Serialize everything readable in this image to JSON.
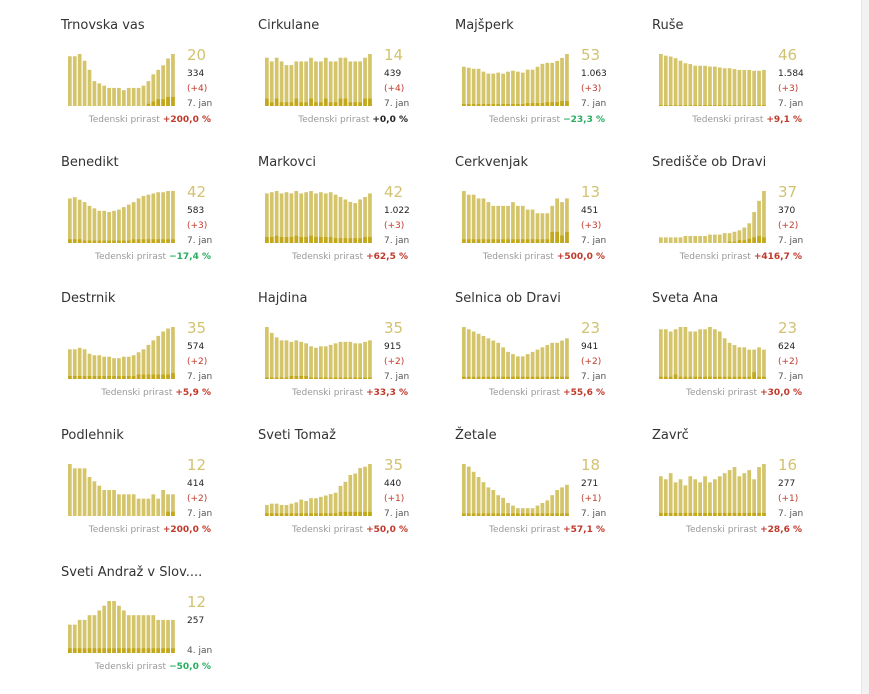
{
  "growth_label": "Tedenski prirast",
  "colors": {
    "bar": "#d4c46a",
    "bar_recent": "#c2a81a",
    "positive": "#c0392b",
    "negative": "#27ae60",
    "accent": "#d2c272"
  },
  "chart_data": [
    {
      "type": "bar",
      "title": "Trnovska vas",
      "value": "20",
      "cumulative": "334",
      "delta": "(+4)",
      "date": "7. jan",
      "growth": "+200,0 %",
      "growth_sign": "pos",
      "values": [
        22,
        22,
        23,
        20,
        16,
        11,
        10,
        9,
        8,
        8,
        8,
        7,
        8,
        8,
        8,
        9,
        11,
        14,
        16,
        18,
        21,
        23
      ],
      "recent": [
        0,
        0,
        0,
        0,
        0,
        0,
        0,
        0,
        0,
        0,
        0,
        0,
        0,
        0,
        0,
        0,
        1,
        2,
        3,
        3,
        4,
        4
      ]
    },
    {
      "type": "bar",
      "title": "Cirkulane",
      "value": "14",
      "cumulative": "439",
      "delta": "(+4)",
      "date": "7. jan",
      "growth": "+0,0 %",
      "growth_sign": "zero",
      "values": [
        13,
        12,
        13,
        12,
        11,
        11,
        12,
        12,
        12,
        13,
        12,
        12,
        13,
        12,
        12,
        13,
        13,
        12,
        12,
        12,
        13,
        14
      ],
      "recent": [
        2,
        1,
        2,
        1,
        1,
        1,
        2,
        1,
        1,
        2,
        1,
        1,
        2,
        1,
        1,
        2,
        2,
        1,
        1,
        1,
        2,
        2
      ]
    },
    {
      "type": "bar",
      "title": "Majšperk",
      "value": "53",
      "cumulative": "1.063",
      "delta": "(+3)",
      "date": "7. jan",
      "growth": "−23,3 %",
      "growth_sign": "neg",
      "values": [
        40,
        39,
        38,
        38,
        35,
        33,
        33,
        34,
        33,
        35,
        36,
        35,
        34,
        37,
        37,
        40,
        43,
        44,
        44,
        46,
        49,
        53
      ],
      "recent": [
        2,
        2,
        2,
        2,
        2,
        2,
        2,
        2,
        2,
        2,
        2,
        2,
        2,
        3,
        3,
        3,
        3,
        4,
        4,
        4,
        5,
        5
      ]
    },
    {
      "type": "bar",
      "title": "Ruše",
      "value": "46",
      "cumulative": "1.584",
      "delta": "(+3)",
      "date": "7. jan",
      "growth": "+9,1 %",
      "growth_sign": "pos",
      "values": [
        62,
        60,
        59,
        57,
        54,
        51,
        50,
        48,
        48,
        48,
        47,
        47,
        46,
        45,
        45,
        44,
        43,
        43,
        43,
        42,
        42,
        43
      ],
      "recent": [
        1,
        1,
        1,
        1,
        1,
        1,
        1,
        1,
        1,
        1,
        1,
        1,
        1,
        1,
        1,
        1,
        1,
        1,
        1,
        1,
        1,
        1
      ]
    },
    {
      "type": "bar",
      "title": "Benedikt",
      "value": "42",
      "cumulative": "583",
      "delta": "(+3)",
      "date": "7. jan",
      "growth": "−17,4 %",
      "growth_sign": "neg",
      "values": [
        36,
        37,
        35,
        33,
        30,
        28,
        26,
        26,
        25,
        26,
        27,
        29,
        31,
        33,
        36,
        38,
        39,
        40,
        41,
        41,
        42,
        42
      ],
      "recent": [
        3,
        3,
        3,
        2,
        2,
        2,
        2,
        2,
        2,
        2,
        2,
        2,
        2,
        3,
        3,
        3,
        3,
        3,
        3,
        3,
        3,
        3
      ]
    },
    {
      "type": "bar",
      "title": "Markovci",
      "value": "42",
      "cumulative": "1.022",
      "delta": "(+3)",
      "date": "7. jan",
      "growth": "+62,5 %",
      "growth_sign": "pos",
      "values": [
        41,
        42,
        43,
        41,
        42,
        41,
        43,
        41,
        42,
        43,
        41,
        42,
        41,
        42,
        40,
        38,
        36,
        34,
        33,
        36,
        38,
        41
      ],
      "recent": [
        5,
        5,
        6,
        5,
        5,
        5,
        6,
        5,
        5,
        6,
        5,
        5,
        5,
        5,
        4,
        4,
        4,
        4,
        4,
        4,
        5,
        5
      ]
    },
    {
      "type": "bar",
      "title": "Cerkvenjak",
      "value": "13",
      "cumulative": "451",
      "delta": "(+3)",
      "date": "7. jan",
      "growth": "+500,0 %",
      "growth_sign": "pos",
      "values": [
        14,
        13,
        13,
        12,
        12,
        11,
        10,
        10,
        10,
        10,
        11,
        10,
        10,
        9,
        9,
        8,
        8,
        8,
        10,
        12,
        11,
        12
      ],
      "recent": [
        1,
        1,
        1,
        1,
        1,
        1,
        1,
        1,
        1,
        1,
        1,
        1,
        1,
        1,
        1,
        1,
        1,
        1,
        3,
        3,
        2,
        3
      ]
    },
    {
      "type": "bar",
      "title": "Središče ob Dravi",
      "value": "37",
      "cumulative": "370",
      "delta": "(+2)",
      "date": "7. jan",
      "growth": "+416,7 %",
      "growth_sign": "pos",
      "values": [
        4,
        4,
        4,
        4,
        4,
        5,
        5,
        5,
        5,
        5,
        6,
        6,
        6,
        7,
        7,
        8,
        9,
        11,
        14,
        22,
        30,
        37
      ],
      "recent": [
        0,
        0,
        0,
        0,
        0,
        0,
        0,
        0,
        0,
        0,
        0,
        0,
        0,
        0,
        1,
        1,
        2,
        2,
        3,
        4,
        5,
        4
      ]
    },
    {
      "type": "bar",
      "title": "Destrnik",
      "value": "35",
      "cumulative": "574",
      "delta": "(+2)",
      "date": "7. jan",
      "growth": "+5,9 %",
      "growth_sign": "pos",
      "values": [
        20,
        20,
        21,
        20,
        17,
        16,
        16,
        15,
        15,
        14,
        14,
        15,
        15,
        16,
        18,
        20,
        23,
        26,
        29,
        32,
        34,
        35
      ],
      "recent": [
        2,
        2,
        2,
        2,
        2,
        2,
        2,
        2,
        2,
        2,
        2,
        2,
        2,
        2,
        3,
        3,
        3,
        3,
        3,
        3,
        3,
        4
      ]
    },
    {
      "type": "bar",
      "title": "Hajdina",
      "value": "35",
      "cumulative": "915",
      "delta": "(+2)",
      "date": "7. jan",
      "growth": "+33,3 %",
      "growth_sign": "pos",
      "values": [
        35,
        31,
        28,
        26,
        26,
        25,
        26,
        25,
        24,
        22,
        21,
        22,
        22,
        23,
        24,
        25,
        25,
        25,
        24,
        24,
        25,
        26
      ],
      "recent": [
        1,
        1,
        1,
        1,
        1,
        2,
        2,
        2,
        2,
        1,
        1,
        1,
        1,
        1,
        1,
        1,
        1,
        1,
        1,
        1,
        1,
        1
      ]
    },
    {
      "type": "bar",
      "title": "Selnica ob Dravi",
      "value": "23",
      "cumulative": "941",
      "delta": "(+2)",
      "date": "7. jan",
      "growth": "+55,6 %",
      "growth_sign": "pos",
      "values": [
        23,
        22,
        21,
        20,
        19,
        18,
        17,
        16,
        14,
        12,
        11,
        10,
        10,
        11,
        12,
        13,
        14,
        15,
        16,
        16,
        17,
        18
      ],
      "recent": [
        1,
        1,
        1,
        1,
        1,
        1,
        1,
        1,
        1,
        1,
        1,
        1,
        1,
        1,
        1,
        1,
        1,
        1,
        1,
        1,
        1,
        1
      ]
    },
    {
      "type": "bar",
      "title": "Sveta Ana",
      "value": "23",
      "cumulative": "624",
      "delta": "(+2)",
      "date": "7. jan",
      "growth": "+30,0 %",
      "growth_sign": "pos",
      "values": [
        22,
        22,
        21,
        22,
        23,
        23,
        21,
        21,
        22,
        22,
        23,
        22,
        21,
        18,
        16,
        15,
        14,
        14,
        13,
        13,
        14,
        13
      ],
      "recent": [
        1,
        1,
        1,
        2,
        1,
        1,
        1,
        1,
        1,
        1,
        1,
        1,
        1,
        1,
        1,
        1,
        1,
        1,
        1,
        3,
        1,
        1
      ]
    },
    {
      "type": "bar",
      "title": "Podlehnik",
      "value": "12",
      "cumulative": "414",
      "delta": "(+2)",
      "date": "7. jan",
      "growth": "+200,0 %",
      "growth_sign": "pos",
      "values": [
        12,
        11,
        11,
        11,
        9,
        8,
        7,
        6,
        6,
        6,
        5,
        5,
        5,
        5,
        4,
        4,
        4,
        5,
        4,
        6,
        5,
        5
      ],
      "recent": [
        0,
        0,
        0,
        0,
        0,
        0,
        0,
        0,
        0,
        0,
        0,
        0,
        0,
        0,
        0,
        0,
        0,
        0,
        0,
        0,
        1,
        1
      ]
    },
    {
      "type": "bar",
      "title": "Sveti Tomaž",
      "value": "35",
      "cumulative": "440",
      "delta": "(+1)",
      "date": "7. jan",
      "growth": "+50,0 %",
      "growth_sign": "pos",
      "values": [
        8,
        9,
        9,
        8,
        8,
        9,
        10,
        12,
        11,
        13,
        13,
        14,
        15,
        16,
        17,
        22,
        25,
        30,
        31,
        35,
        36,
        38
      ],
      "recent": [
        2,
        2,
        2,
        2,
        2,
        2,
        2,
        2,
        2,
        2,
        2,
        2,
        2,
        2,
        2,
        3,
        3,
        3,
        3,
        3,
        3,
        3
      ]
    },
    {
      "type": "bar",
      "title": "Žetale",
      "value": "18",
      "cumulative": "271",
      "delta": "(+1)",
      "date": "7. jan",
      "growth": "+57,1 %",
      "growth_sign": "pos",
      "values": [
        20,
        19,
        17,
        15,
        13,
        11,
        10,
        8,
        7,
        5,
        4,
        3,
        3,
        3,
        3,
        4,
        5,
        6,
        8,
        10,
        11,
        12
      ],
      "recent": [
        1,
        1,
        1,
        1,
        1,
        1,
        1,
        1,
        1,
        1,
        1,
        1,
        1,
        1,
        1,
        1,
        1,
        1,
        1,
        1,
        1,
        1
      ]
    },
    {
      "type": "bar",
      "title": "Zavrč",
      "value": "16",
      "cumulative": "277",
      "delta": "(+1)",
      "date": "7. jan",
      "growth": "+28,6 %",
      "growth_sign": "pos",
      "values": [
        13,
        12,
        14,
        11,
        12,
        10,
        13,
        12,
        11,
        13,
        11,
        12,
        13,
        14,
        15,
        16,
        13,
        14,
        15,
        12,
        16,
        17
      ],
      "recent": [
        1,
        1,
        1,
        1,
        1,
        1,
        1,
        1,
        1,
        1,
        1,
        1,
        1,
        1,
        1,
        1,
        1,
        1,
        1,
        1,
        1,
        1
      ]
    },
    {
      "type": "bar",
      "title": "Sveti Andraž v Slov....",
      "value": "12",
      "cumulative": "257",
      "delta": "",
      "date": "4. jan",
      "growth": "−50,0 %",
      "growth_sign": "neg",
      "values": [
        6,
        6,
        7,
        7,
        8,
        8,
        9,
        10,
        11,
        11,
        10,
        9,
        8,
        8,
        8,
        8,
        8,
        8,
        7,
        7,
        7,
        7
      ],
      "recent": [
        1,
        1,
        1,
        1,
        1,
        1,
        1,
        1,
        1,
        1,
        1,
        1,
        1,
        1,
        1,
        1,
        1,
        1,
        1,
        1,
        1,
        1
      ]
    }
  ]
}
